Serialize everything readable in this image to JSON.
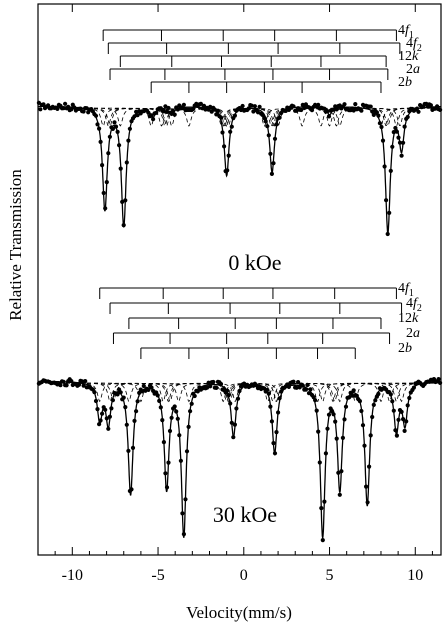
{
  "chart_data": {
    "type": "scatter",
    "title": "",
    "xlabel": "Velocity(mm/s)",
    "ylabel": "Relative Transmission",
    "xlim": [
      -12,
      11.5
    ],
    "xticks": [
      -10,
      -5,
      0,
      5,
      10
    ],
    "xtick_labels": [
      "-10",
      "-5",
      "0",
      "5",
      "10"
    ],
    "grid": false,
    "legend": "none",
    "panels": [
      {
        "field_label": "0 kOe",
        "sextets": [
          {
            "name": "4f",
            "sub": "1",
            "lines": [
              -8.2,
              -4.8,
              -1.2,
              1.8,
              5.4,
              8.9
            ]
          },
          {
            "name": "4f",
            "sub": "2",
            "lines": [
              -7.9,
              -4.5,
              -0.9,
              2.0,
              5.6,
              9.1
            ]
          },
          {
            "name": "12k",
            "sub": "",
            "lines": [
              -7.2,
              -4.2,
              -1.3,
              1.6,
              4.5,
              8.3
            ]
          },
          {
            "name": "2a",
            "sub": "",
            "lines": [
              -7.8,
              -4.6,
              -1.1,
              1.7,
              5.0,
              8.4
            ]
          },
          {
            "name": "2b",
            "sub": "",
            "lines": [
              -5.4,
              -3.2,
              -1.0,
              1.2,
              3.4,
              8.0
            ]
          }
        ],
        "absorption_lines": [
          {
            "v": -8.1,
            "depth": 0.62
          },
          {
            "v": -7.0,
            "depth": 0.72
          },
          {
            "v": -5.3,
            "depth": 0.06
          },
          {
            "v": -4.2,
            "depth": 0.05
          },
          {
            "v": -1.0,
            "depth": 0.42
          },
          {
            "v": 1.65,
            "depth": 0.4
          },
          {
            "v": 5.0,
            "depth": 0.05
          },
          {
            "v": 8.4,
            "depth": 0.76
          },
          {
            "v": 9.2,
            "depth": 0.25
          }
        ]
      },
      {
        "field_label": "30 kOe",
        "sextets": [
          {
            "name": "4f",
            "sub": "1",
            "lines": [
              -8.4,
              -4.7,
              -1.2,
              1.7,
              5.3,
              8.9
            ]
          },
          {
            "name": "4f",
            "sub": "2",
            "lines": [
              -7.8,
              -4.4,
              -0.8,
              2.1,
              5.6,
              9.2
            ]
          },
          {
            "name": "12k",
            "sub": "",
            "lines": [
              -6.7,
              -3.8,
              -0.5,
              1.9,
              5.2,
              8.0
            ]
          },
          {
            "name": "2a",
            "sub": "",
            "lines": [
              -7.6,
              -4.3,
              -1.0,
              1.4,
              4.6,
              8.5
            ]
          },
          {
            "name": "2b",
            "sub": "",
            "lines": [
              -6.0,
              -3.2,
              -0.9,
              1.9,
              4.3,
              6.5
            ]
          }
        ],
        "absorption_lines": [
          {
            "v": -8.4,
            "depth": 0.22
          },
          {
            "v": -7.9,
            "depth": 0.24
          },
          {
            "v": -6.6,
            "depth": 0.66
          },
          {
            "v": -4.5,
            "depth": 0.62
          },
          {
            "v": -3.5,
            "depth": 0.9
          },
          {
            "v": -0.6,
            "depth": 0.32
          },
          {
            "v": 1.8,
            "depth": 0.42
          },
          {
            "v": 4.6,
            "depth": 0.9
          },
          {
            "v": 5.6,
            "depth": 0.62
          },
          {
            "v": 7.2,
            "depth": 0.72
          },
          {
            "v": 8.9,
            "depth": 0.28
          },
          {
            "v": 9.4,
            "depth": 0.24
          }
        ]
      }
    ]
  }
}
